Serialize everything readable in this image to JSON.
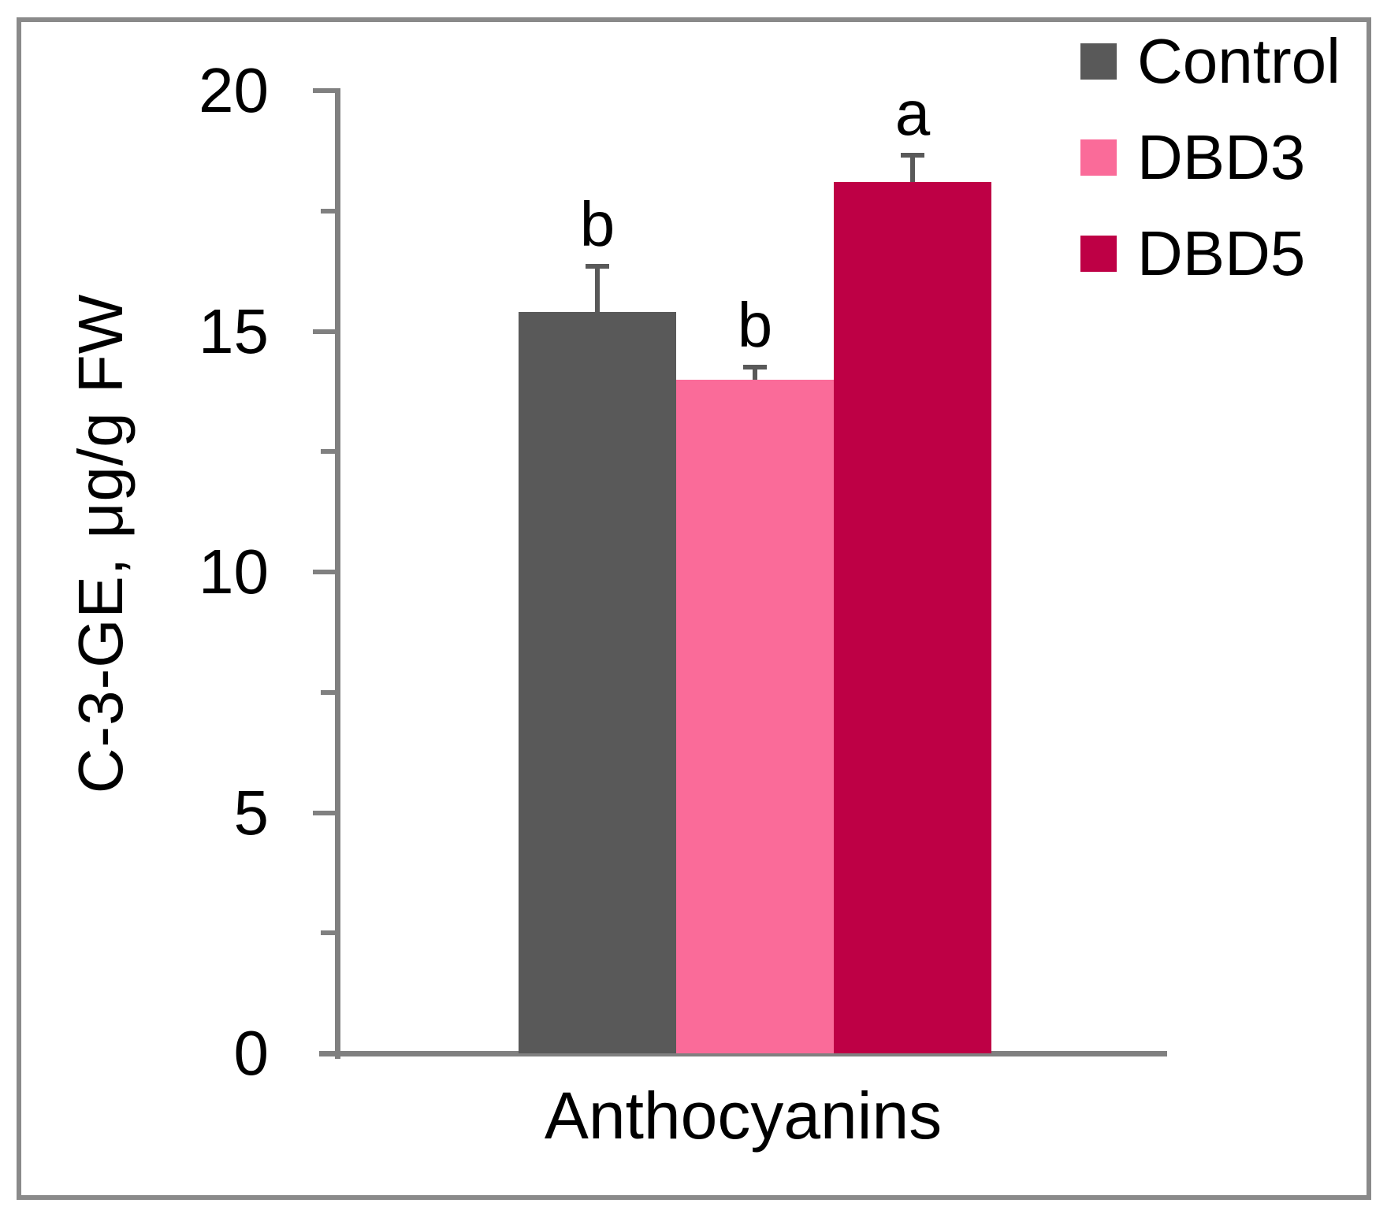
{
  "chart_data": {
    "type": "bar",
    "title": "",
    "categories": [
      "Anthocyanins"
    ],
    "series": [
      {
        "name": "Control",
        "values": [
          15.4
        ],
        "errors": [
          1.0
        ],
        "sig_letters": [
          "b"
        ],
        "color": "#595959"
      },
      {
        "name": "DBD3",
        "values": [
          14.0
        ],
        "errors": [
          0.3
        ],
        "sig_letters": [
          "b"
        ],
        "color": "#FA6B99"
      },
      {
        "name": "DBD5",
        "values": [
          18.1
        ],
        "errors": [
          0.6
        ],
        "sig_letters": [
          "a"
        ],
        "color": "#BE0045"
      }
    ],
    "xlabel": "Anthocyanins",
    "ylabel": "C-3-GE, μg/g FW",
    "ylim": [
      0,
      20
    ],
    "y_major_ticks": [
      0,
      5,
      10,
      15,
      20
    ],
    "y_minor_ticks": [
      2.5,
      7.5,
      12.5,
      17.5
    ],
    "grid": false,
    "legend_position": "top-right",
    "colors": {
      "axis": "#808080",
      "error_bar": "#595959",
      "frame_border": "#8A8A8A",
      "text": "#000000",
      "background": "#FFFFFF"
    }
  }
}
